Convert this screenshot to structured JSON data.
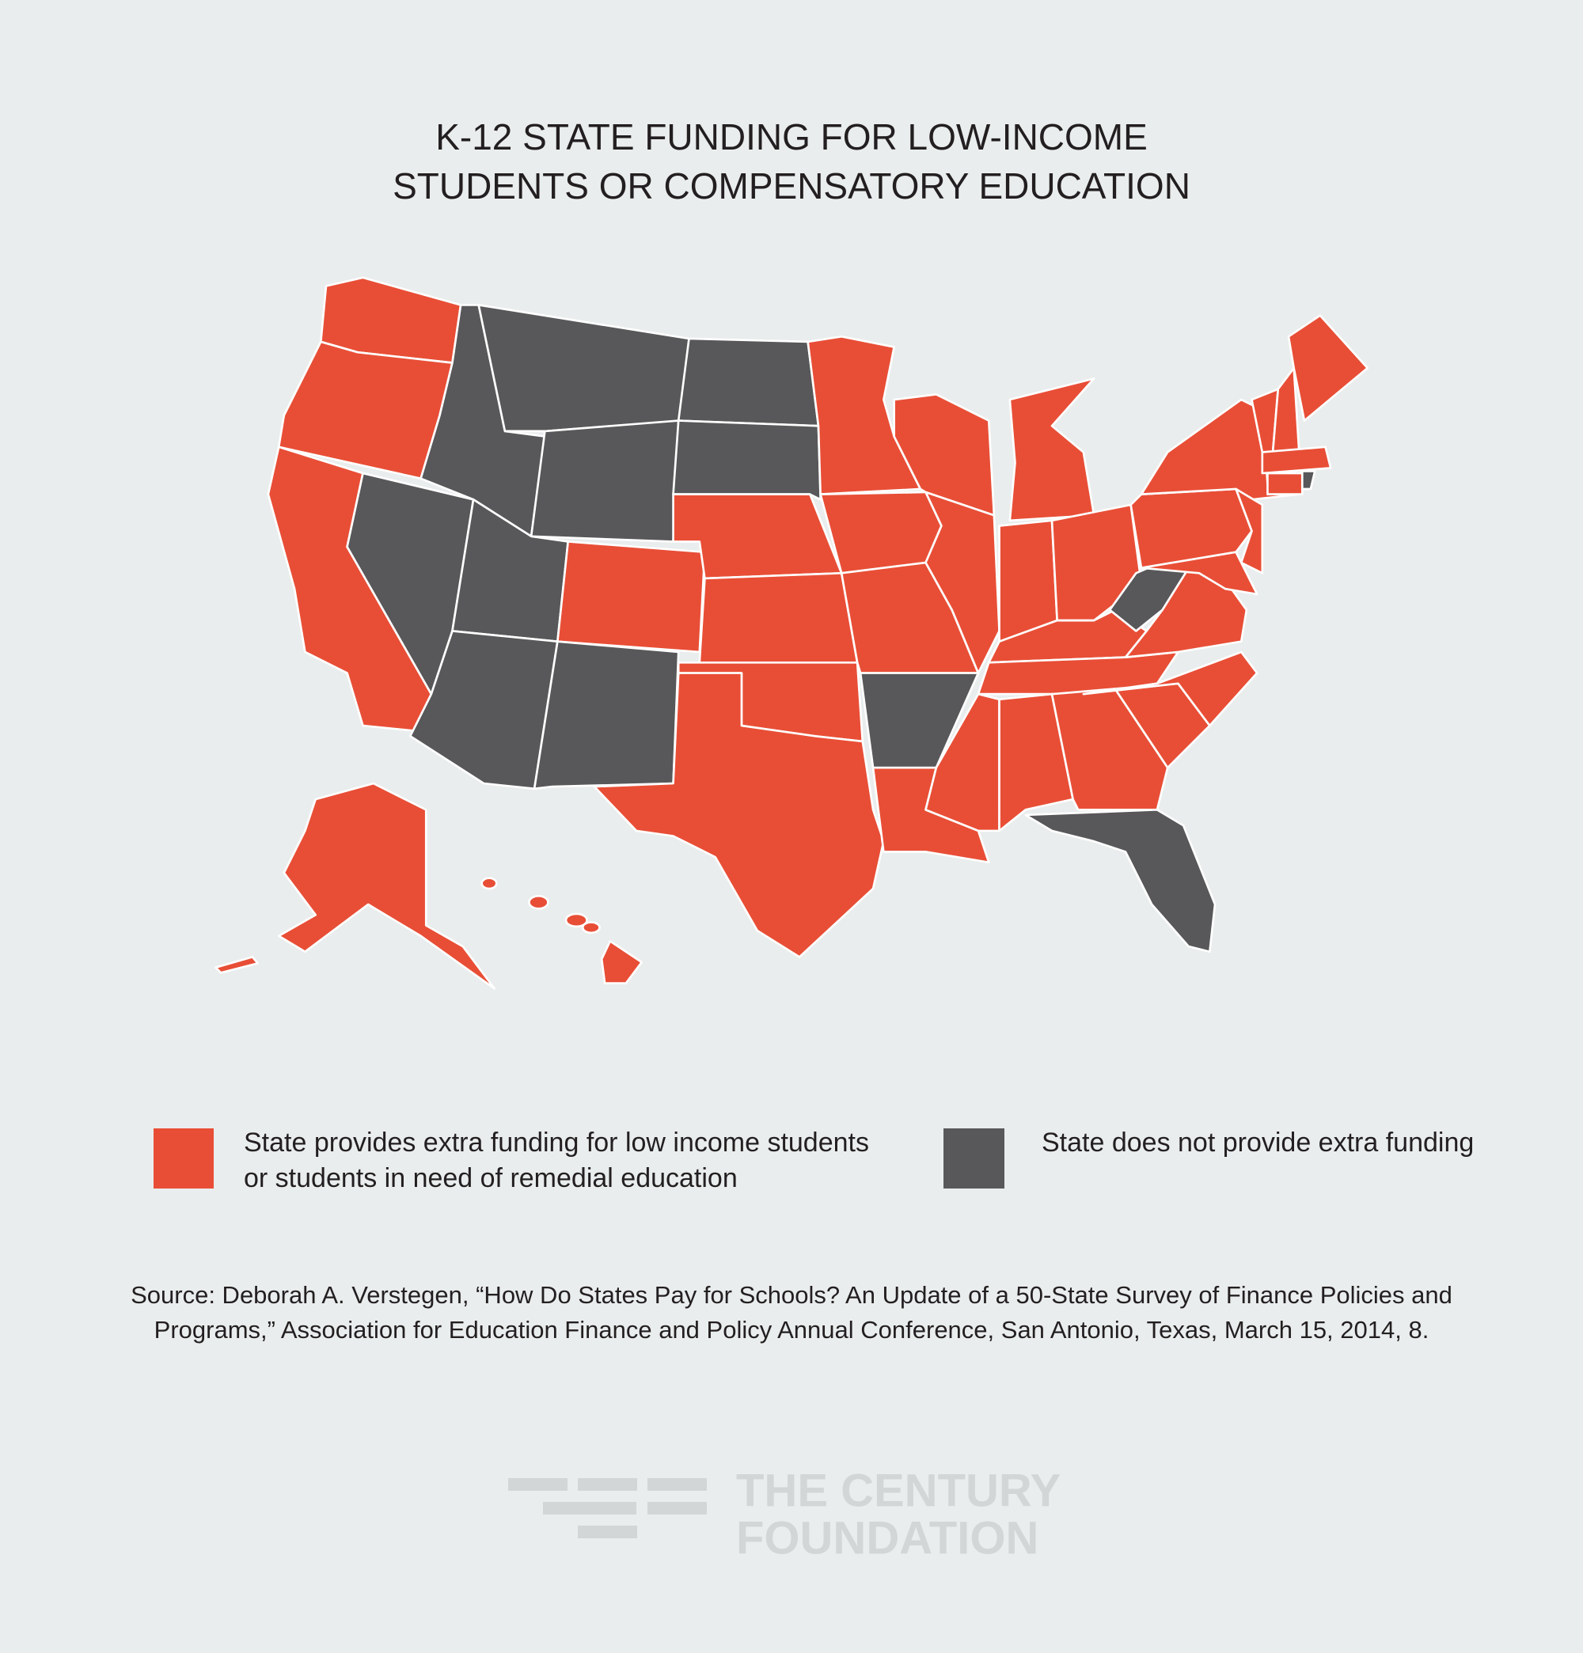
{
  "title": {
    "lines": [
      "K-12 STATE FUNDING FOR LOW-INCOME",
      "STUDENTS OR COMPENSATORY EDUCATION"
    ]
  },
  "legend": [
    {
      "color": "#e84e36",
      "lines": [
        "State provides extra funding for low income students",
        "or students in need of remedial education"
      ]
    },
    {
      "color": "#58585a",
      "lines": [
        "State does not provide extra funding"
      ]
    }
  ],
  "source": {
    "lines": [
      "Source: Deborah A. Verstegen, “How Do States Pay for Schools? An Update of a 50-State Survey of Finance Policies and",
      "Programs,” Association for Education Finance and Policy Annual Conference, San Antonio, Texas, March 15, 2014, 8."
    ]
  },
  "logo": {
    "lines": [
      "THE CENTURY",
      "FOUNDATION"
    ]
  }
}
